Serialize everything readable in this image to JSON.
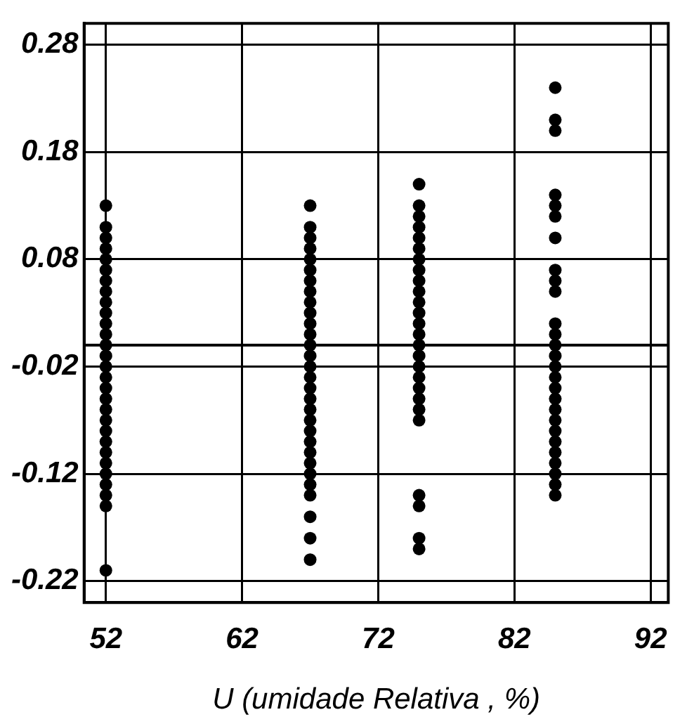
{
  "chart_data": {
    "type": "scatter",
    "xlabel": "U (umidade Relativa , %)",
    "marker": "circle",
    "grid": true,
    "legend": false,
    "xlim": [
      50.4,
      93.3
    ],
    "xticks": [
      52,
      62,
      72,
      82,
      92
    ],
    "ylim": [
      -0.24,
      0.3
    ],
    "yticks": [
      -0.22,
      -0.12,
      -0.02,
      0.08,
      0.18,
      0.28
    ],
    "ref_lines": [
      {
        "axis": "y",
        "value": 0,
        "color": "#000000",
        "line_style": "solid"
      }
    ],
    "series": [
      {
        "color": "#000000",
        "x": [
          52,
          52,
          52,
          52,
          52,
          52,
          52,
          52,
          52,
          52,
          52,
          52,
          52,
          52,
          52,
          52,
          52,
          52,
          52,
          52,
          52,
          52,
          52,
          52,
          52,
          52,
          52,
          52,
          52
        ],
        "values": [
          0.13,
          0.11,
          0.1,
          0.09,
          0.08,
          0.07,
          0.06,
          0.05,
          0.04,
          0.03,
          0.02,
          0.01,
          0,
          -0.01,
          -0.02,
          -0.03,
          -0.04,
          -0.05,
          -0.06,
          -0.07,
          -0.08,
          -0.09,
          -0.1,
          -0.11,
          -0.12,
          -0.13,
          -0.14,
          -0.15,
          -0.21
        ]
      },
      {
        "color": "#000000",
        "x": [
          67,
          67,
          67,
          67,
          67,
          67,
          67,
          67,
          67,
          67,
          67,
          67,
          67,
          67,
          67,
          67,
          67,
          67,
          67,
          67,
          67,
          67,
          67,
          67,
          67,
          67,
          67,
          67,
          67,
          67
        ],
        "values": [
          0.13,
          0.11,
          0.1,
          0.09,
          0.08,
          0.07,
          0.06,
          0.05,
          0.04,
          0.03,
          0.02,
          0.01,
          0,
          -0.01,
          -0.02,
          -0.03,
          -0.04,
          -0.05,
          -0.06,
          -0.07,
          -0.08,
          -0.09,
          -0.1,
          -0.11,
          -0.12,
          -0.13,
          -0.14,
          -0.16,
          -0.18,
          -0.2
        ]
      },
      {
        "color": "#000000",
        "x": [
          75,
          75,
          75,
          75,
          75,
          75,
          75,
          75,
          75,
          75,
          75,
          75,
          75,
          75,
          75,
          75,
          75,
          75,
          75,
          75,
          75,
          75,
          75,
          75,
          75,
          75
        ],
        "values": [
          0.15,
          0.13,
          0.12,
          0.11,
          0.1,
          0.09,
          0.08,
          0.07,
          0.06,
          0.05,
          0.04,
          0.03,
          0.02,
          0.01,
          0,
          -0.01,
          -0.02,
          -0.03,
          -0.04,
          -0.05,
          -0.06,
          -0.07,
          -0.14,
          -0.15,
          -0.18,
          -0.19
        ]
      },
      {
        "color": "#000000",
        "x": [
          85,
          85,
          85,
          85,
          85,
          85,
          85,
          85,
          85,
          85,
          85,
          85,
          85,
          85,
          85,
          85,
          85,
          85,
          85,
          85,
          85,
          85,
          85,
          85,
          85,
          85,
          85
        ],
        "values": [
          0.24,
          0.21,
          0.2,
          0.14,
          0.13,
          0.12,
          0.1,
          0.07,
          0.06,
          0.05,
          0.02,
          0.01,
          0,
          -0.01,
          -0.02,
          -0.03,
          -0.04,
          -0.05,
          -0.06,
          -0.07,
          -0.08,
          -0.09,
          -0.1,
          -0.11,
          -0.12,
          -0.13,
          -0.14
        ]
      }
    ]
  }
}
